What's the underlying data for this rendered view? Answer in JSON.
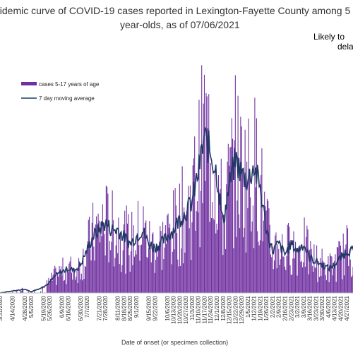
{
  "chart_data": {
    "type": "bar",
    "title_line1": "pidemic curve of COVID-19 cases reported in Lexington-Fayette County among 5",
    "title_line2": "year-olds, as of 07/06/2021",
    "annotation_line1": "Likely to",
    "annotation_line2": "dela",
    "xlabel": "Date of onset (or specimen collection)",
    "ylabel": "",
    "legend_position": "top-left",
    "grid": false,
    "bar_color": "#7030a0",
    "line_color": "#1f3864",
    "series": [
      {
        "name": "cases 5-17 years of age",
        "kind": "bar"
      },
      {
        "name": "7 day moving average",
        "kind": "line"
      }
    ],
    "tick_labels": [
      "3/31/2020",
      "4/14/2020",
      "4/28/2020",
      "5/5/2020",
      "5/19/2020",
      "5/26/2020",
      "6/9/2020",
      "6/16/2020",
      "6/30/2020",
      "7/7/2020",
      "7/21/2020",
      "7/28/2020",
      "8/11/2020",
      "8/18/2020",
      "8/25/2020",
      "9/1/2020",
      "9/15/2020",
      "9/22/2020",
      "10/6/2020",
      "10/13/2020",
      "10/20/2020",
      "10/27/2020",
      "11/3/2020",
      "11/10/2020",
      "11/17/2020",
      "11/24/2020",
      "12/1/2020",
      "12/8/2020",
      "12/15/2020",
      "12/22/2020",
      "12/29/2020",
      "1/5/2021",
      "1/12/2021",
      "1/19/2021",
      "1/26/2021",
      "2/2/2021",
      "2/9/2021",
      "2/16/2021",
      "2/23/2021",
      "3/2/2021",
      "3/9/2021",
      "3/16/2021",
      "3/23/2021",
      "3/30/2021",
      "4/6/2021",
      "4/13/2021",
      "4/20/2021",
      "4/27/2021"
    ],
    "x_start": "2020-03-31",
    "x_end": "2021-05-04",
    "ylim": [
      0,
      33
    ],
    "keypoints": [
      [
        "2020-03-31",
        0
      ],
      [
        "2020-04-14",
        0.3
      ],
      [
        "2020-04-28",
        0.5
      ],
      [
        "2020-05-05",
        0.2
      ],
      [
        "2020-05-19",
        0.8
      ],
      [
        "2020-05-26",
        1.5
      ],
      [
        "2020-06-02",
        2.5
      ],
      [
        "2020-06-09",
        3
      ],
      [
        "2020-06-16",
        3.5
      ],
      [
        "2020-06-23",
        3.2
      ],
      [
        "2020-06-30",
        4
      ],
      [
        "2020-07-07",
        6
      ],
      [
        "2020-07-14",
        8
      ],
      [
        "2020-07-21",
        9
      ],
      [
        "2020-07-28",
        10
      ],
      [
        "2020-08-04",
        9
      ],
      [
        "2020-08-11",
        9
      ],
      [
        "2020-08-18",
        8
      ],
      [
        "2020-08-25",
        7
      ],
      [
        "2020-09-01",
        8
      ],
      [
        "2020-09-08",
        9
      ],
      [
        "2020-09-15",
        7
      ],
      [
        "2020-09-22",
        6.5
      ],
      [
        "2020-09-29",
        7
      ],
      [
        "2020-10-06",
        8
      ],
      [
        "2020-10-13",
        9
      ],
      [
        "2020-10-20",
        10.5
      ],
      [
        "2020-10-27",
        11.5
      ],
      [
        "2020-11-03",
        13
      ],
      [
        "2020-11-10",
        17
      ],
      [
        "2020-11-17",
        22
      ],
      [
        "2020-11-24",
        20
      ],
      [
        "2020-12-01",
        17
      ],
      [
        "2020-12-08",
        10
      ],
      [
        "2020-12-15",
        15
      ],
      [
        "2020-12-22",
        19
      ],
      [
        "2020-12-29",
        17
      ],
      [
        "2021-01-05",
        16
      ],
      [
        "2021-01-12",
        18
      ],
      [
        "2021-01-19",
        15
      ],
      [
        "2021-01-26",
        9
      ],
      [
        "2021-02-02",
        6
      ],
      [
        "2021-02-09",
        7
      ],
      [
        "2021-02-16",
        5.5
      ],
      [
        "2021-02-23",
        7
      ],
      [
        "2021-03-02",
        6
      ],
      [
        "2021-03-09",
        7
      ],
      [
        "2021-03-16",
        5
      ],
      [
        "2021-03-23",
        4.5
      ],
      [
        "2021-03-30",
        4
      ],
      [
        "2021-04-06",
        3.5
      ],
      [
        "2021-04-13",
        4
      ],
      [
        "2021-04-20",
        5
      ],
      [
        "2021-04-27",
        6
      ],
      [
        "2021-05-04",
        6
      ]
    ]
  }
}
